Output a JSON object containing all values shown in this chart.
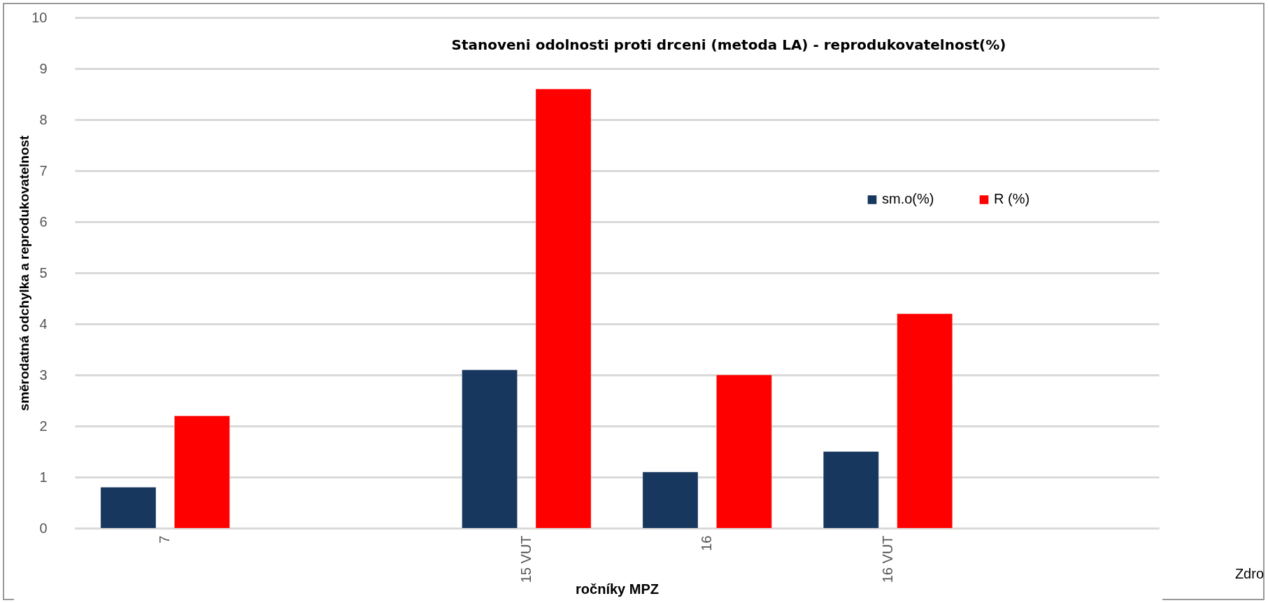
{
  "chart_data": {
    "type": "bar",
    "title": "Stanoveni odolnosti proti drceni (metoda LA) - reprodukovatelnost(%)",
    "xlabel": "ročníky MPZ",
    "ylabel": "směrodatná odchylka a reprodukovatelnost",
    "categories": [
      "7",
      null,
      "15 VUT",
      "16",
      "16 VUT",
      null
    ],
    "series": [
      {
        "name": "sm.o(%)",
        "color": "#17375e",
        "values": [
          0.8,
          null,
          3.1,
          1.1,
          1.5,
          null
        ]
      },
      {
        "name": "R (%)",
        "color": "#ff0000",
        "values": [
          2.2,
          null,
          8.6,
          3.0,
          4.2,
          null
        ]
      }
    ],
    "ylim": [
      0,
      10
    ],
    "yticks": [
      0,
      1,
      2,
      3,
      4,
      5,
      6,
      7,
      8,
      9,
      10
    ],
    "grid": "y",
    "legend": "top right",
    "annotations": [
      "Zdro"
    ]
  }
}
